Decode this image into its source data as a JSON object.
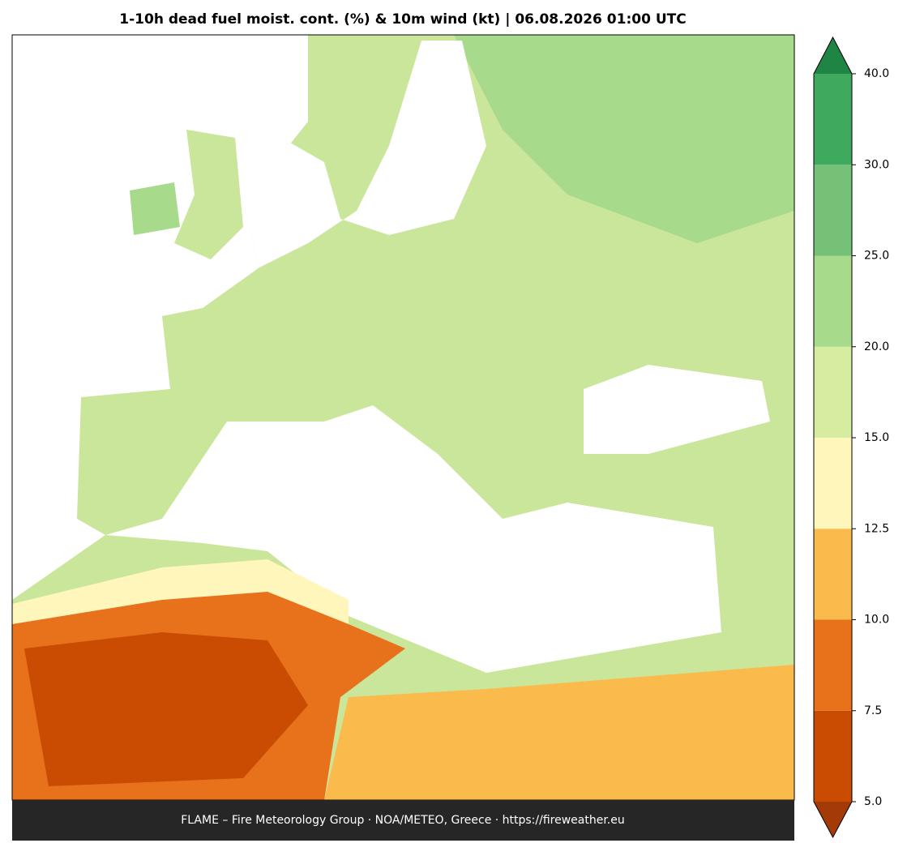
{
  "title": "1-10h dead fuel moist. cont. (%) & 10m wind (kt)  |  06.08.2026 01:00 UTC",
  "footer": "FLAME – Fire Meteorology Group · NOA/METEO, Greece · https://fireweather.eu",
  "colorbar": {
    "levels": [
      {
        "value": 5,
        "label": "5.0"
      },
      7.5,
      {
        "value": 10,
        "label": "10.0"
      },
      12.5,
      {
        "value": 15,
        "label": "15.0"
      },
      {
        "value": 20,
        "label": "20.0"
      },
      {
        "value": 25,
        "label": "25.0"
      },
      {
        "value": 30,
        "label": "30.0"
      },
      {
        "value": 40,
        "label": "40.0"
      }
    ],
    "colors": [
      "#c94c02",
      "#e8711b",
      "#fbba4c",
      "#fff6bb",
      "#d6eda1",
      "#a8da8b",
      "#74c177",
      "#3faa5d"
    ],
    "under_color": "#a33a07",
    "over_color": "#1f8545"
  }
}
